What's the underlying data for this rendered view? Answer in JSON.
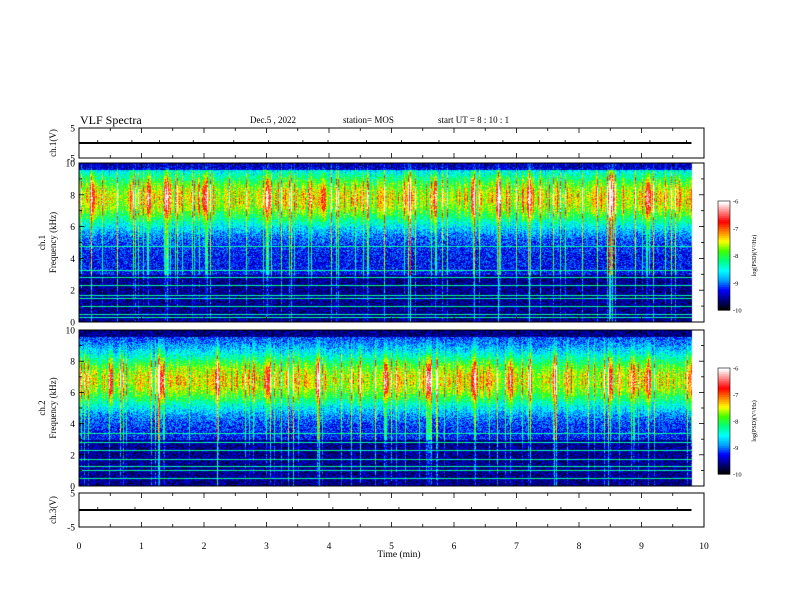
{
  "header": {
    "title": "VLF Spectra",
    "date": "Dec.5 , 2022",
    "station": "station= MOS",
    "start": "start UT = 8 : 10 : 1"
  },
  "chart_data": [
    {
      "type": "line",
      "name": "ch1-voltage",
      "ylabel": "ch.1(V)",
      "ylim": [
        -5,
        5
      ],
      "yticks": [
        "5",
        "-5"
      ],
      "x": [
        0,
        9.8
      ],
      "values": [
        0,
        0
      ]
    },
    {
      "type": "heatmap",
      "name": "ch1-spectrogram",
      "ylabel": "ch.1\nFrequency (kHz)",
      "ylim": [
        0,
        10
      ],
      "yticks": [
        "0",
        "2",
        "4",
        "6",
        "8",
        "10"
      ],
      "xlim": [
        0,
        9.8
      ],
      "band_center_khz": 7.8,
      "noise_lines_khz": [
        0.3,
        0.5,
        1.0,
        1.5,
        1.7,
        2.3,
        2.8,
        3.3,
        4.8
      ],
      "strong_bursts_min": [
        0.2,
        1.1,
        2.0,
        3.0,
        3.9,
        5.3,
        6.3,
        6.7,
        7.2,
        8.5,
        9.1
      ],
      "colorbar": {
        "min": -10,
        "max": -6,
        "ticks": [
          "-6",
          "-7",
          "-8",
          "-9",
          "-10"
        ],
        "label": "log(PSD)(V²/Hz)"
      }
    },
    {
      "type": "heatmap",
      "name": "ch2-spectrogram",
      "ylabel": "ch.2\nFrequency (kHz)",
      "ylim": [
        0,
        10
      ],
      "yticks": [
        "0",
        "2",
        "4",
        "6",
        "8",
        "10"
      ],
      "xlim": [
        0,
        9.8
      ],
      "band_center_khz": 6.8,
      "noise_lines_khz": [
        0.5,
        1.0,
        1.3,
        1.7,
        2.3,
        2.8,
        3.4
      ],
      "strong_bursts_min": [
        0.5,
        1.3,
        2.2,
        3.0,
        3.8,
        4.9,
        5.6,
        6.3,
        6.9,
        7.6,
        8.5,
        9.1
      ],
      "colorbar": {
        "min": -10,
        "max": -6,
        "ticks": [
          "-6",
          "-7",
          "-8",
          "-9",
          "-10"
        ],
        "label": "log(PSD)(V²/Hz)"
      }
    },
    {
      "type": "line",
      "name": "ch3-voltage",
      "ylabel": "ch.3(V)",
      "ylim": [
        -5,
        5
      ],
      "yticks": [
        "5",
        "-5"
      ],
      "x": [
        0,
        9.8
      ],
      "values": [
        0,
        0
      ]
    }
  ],
  "xaxis": {
    "label": "Time (min)",
    "ticks": [
      "0",
      "1",
      "2",
      "3",
      "4",
      "5",
      "6",
      "7",
      "8",
      "9",
      "10"
    ],
    "xlim": [
      0,
      10
    ]
  },
  "colors": {
    "colormap": [
      "#000000",
      "#000080",
      "#0000ff",
      "#00a0ff",
      "#00ffff",
      "#00ff80",
      "#40ff00",
      "#ffff00",
      "#ff8000",
      "#ff0000",
      "#ff8080",
      "#ffffff"
    ]
  }
}
